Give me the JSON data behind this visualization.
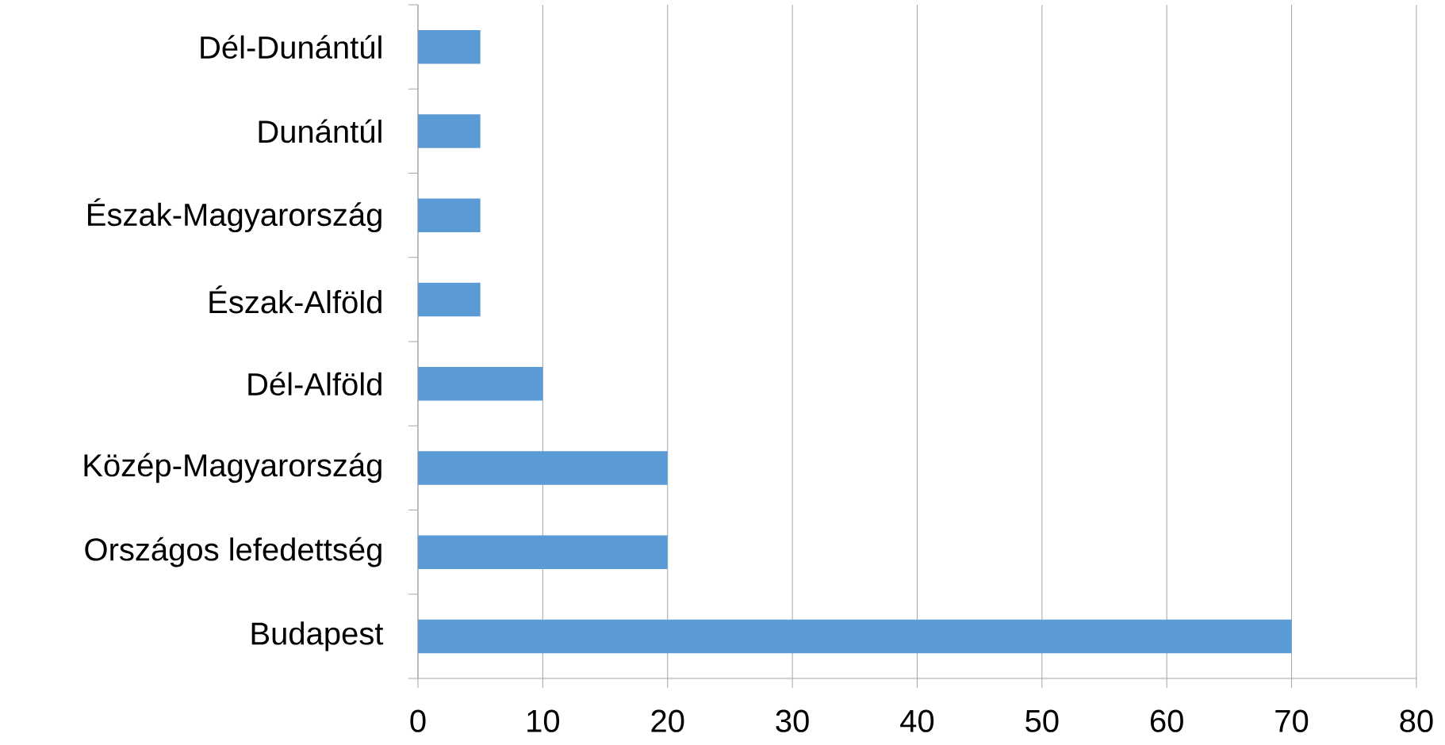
{
  "chart_data": {
    "type": "bar",
    "orientation": "horizontal",
    "categories": [
      "Dél-Dunántúl",
      "Dunántúl",
      "Észak-Magyarország",
      "Észak-Alföld",
      "Dél-Alföld",
      "Közép-Magyarország",
      "Országos lefedettség",
      "Budapest"
    ],
    "values": [
      5,
      5,
      5,
      5,
      10,
      20,
      20,
      70
    ],
    "color": "#5b9bd5",
    "xlim": [
      0,
      80
    ],
    "xticks": [
      0,
      10,
      20,
      30,
      40,
      50,
      60,
      70,
      80
    ],
    "grid": "x"
  }
}
